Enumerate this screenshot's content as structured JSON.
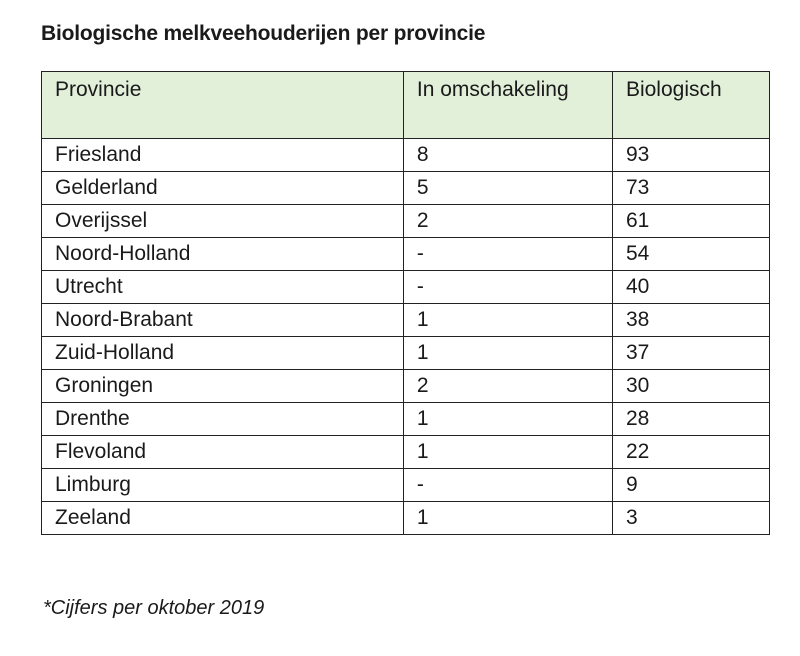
{
  "document": {
    "title": "Biologische melkveehouderijen per provincie",
    "footnote": "*Cijfers per oktober 2019"
  },
  "table": {
    "headers": [
      "Provincie",
      "In omschakeling",
      "Biologisch"
    ],
    "rows": [
      [
        "Friesland",
        "8",
        "93"
      ],
      [
        "Gelderland",
        "5",
        "73"
      ],
      [
        "Overijssel",
        "2",
        "61"
      ],
      [
        "Noord-Holland",
        "-",
        "54"
      ],
      [
        "Utrecht",
        "-",
        "40"
      ],
      [
        "Noord-Brabant",
        "1",
        "38"
      ],
      [
        "Zuid-Holland",
        "1",
        "37"
      ],
      [
        "Groningen",
        "2",
        "30"
      ],
      [
        "Drenthe",
        "1",
        "28"
      ],
      [
        "Flevoland",
        "1",
        "22"
      ],
      [
        "Limburg",
        "-",
        "9"
      ],
      [
        "Zeeland",
        "1",
        "3"
      ]
    ]
  },
  "colors": {
    "header_background": "#e2efd9",
    "border": "#222222",
    "text": "#1a1a1a"
  }
}
